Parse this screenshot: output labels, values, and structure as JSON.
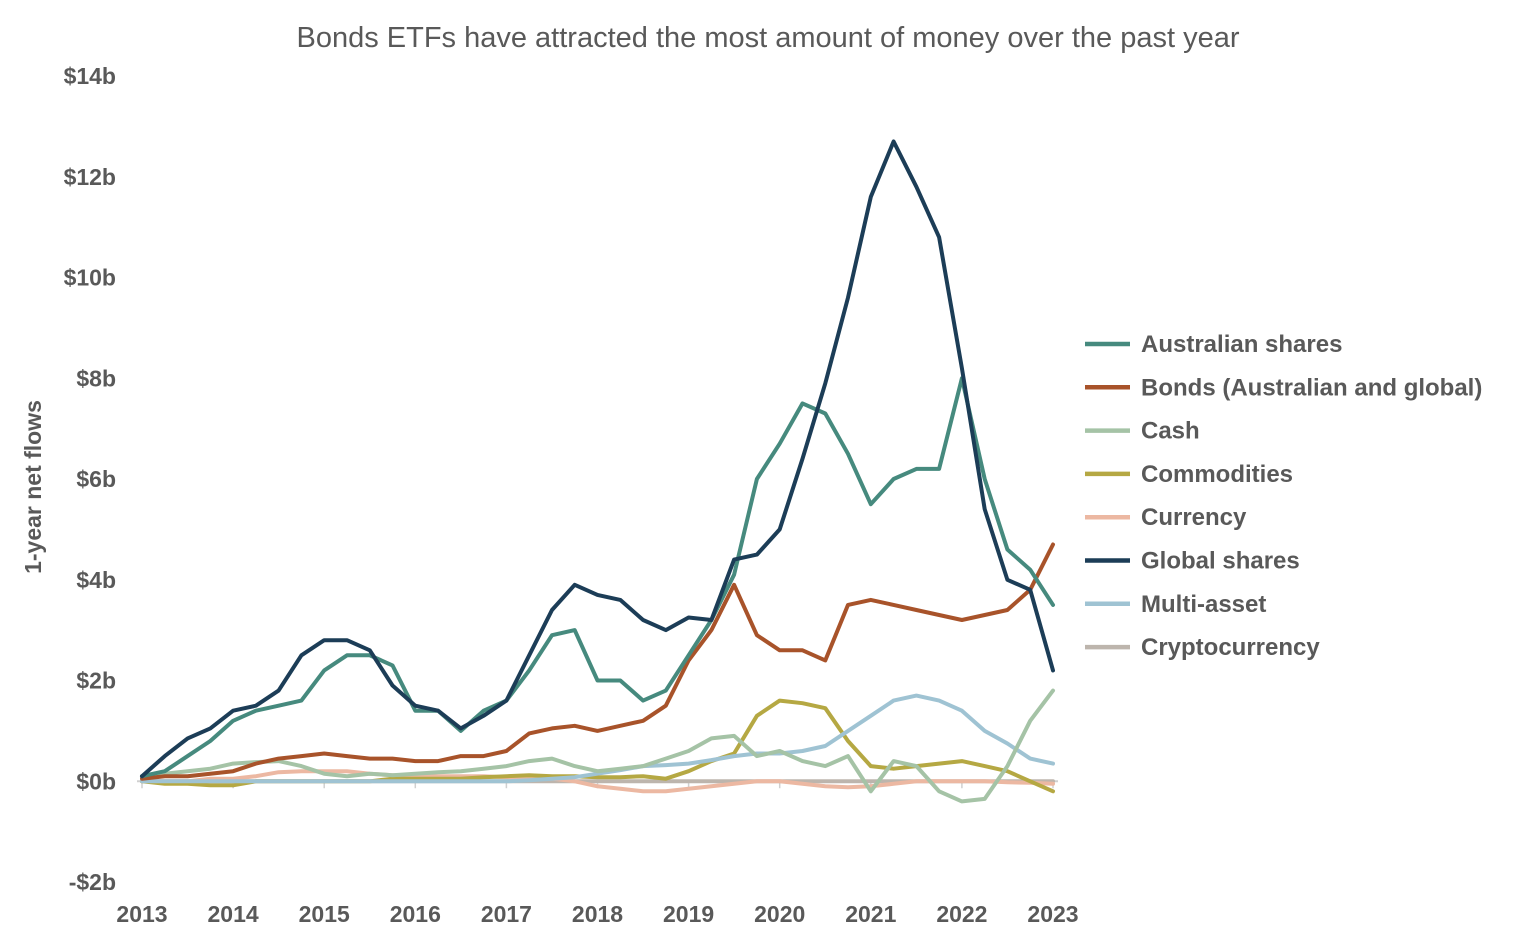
{
  "chart_data": {
    "type": "line",
    "title": "Bonds ETFs have attracted the most amount of money over the past year",
    "xlabel": "",
    "ylabel": "1-year net flows",
    "ylim": [
      -2,
      14
    ],
    "xlim": [
      2013,
      2023
    ],
    "yticks": [
      -2,
      0,
      2,
      4,
      6,
      8,
      10,
      12,
      14
    ],
    "ytick_labels": [
      "-$2b",
      "$0b",
      "$2b",
      "$4b",
      "$6b",
      "$8b",
      "$10b",
      "$12b",
      "$14b"
    ],
    "xticks": [
      2013,
      2014,
      2015,
      2016,
      2017,
      2018,
      2019,
      2020,
      2021,
      2022,
      2023
    ],
    "xtick_labels": [
      "2013",
      "2014",
      "2015",
      "2016",
      "2017",
      "2018",
      "2019",
      "2020",
      "2021",
      "2022",
      "2023"
    ],
    "grid": false,
    "legend_position": "right",
    "x_start": 2013,
    "x_step": 0.25,
    "series": [
      {
        "name": "Australian shares",
        "color": "#468a7e",
        "values": [
          0.1,
          0.2,
          0.5,
          0.8,
          1.2,
          1.4,
          1.5,
          1.6,
          2.2,
          2.5,
          2.5,
          2.3,
          1.4,
          1.4,
          1.0,
          1.4,
          1.6,
          2.2,
          2.9,
          3.0,
          2.0,
          2.0,
          1.6,
          1.8,
          2.5,
          3.2,
          4.1,
          6.0,
          6.7,
          7.5,
          7.3,
          6.5,
          5.5,
          6.0,
          6.2,
          6.2,
          8.0,
          6.0,
          4.6,
          4.2,
          3.5
        ]
      },
      {
        "name": "Bonds (Australian and global)",
        "color": "#a8532a",
        "values": [
          0.05,
          0.1,
          0.1,
          0.15,
          0.2,
          0.35,
          0.45,
          0.5,
          0.55,
          0.5,
          0.45,
          0.45,
          0.4,
          0.4,
          0.5,
          0.5,
          0.6,
          0.95,
          1.05,
          1.1,
          1.0,
          1.1,
          1.2,
          1.5,
          2.4,
          3.0,
          3.9,
          2.9,
          2.6,
          2.6,
          2.4,
          3.5,
          3.6,
          3.5,
          3.4,
          3.3,
          3.2,
          3.3,
          3.4,
          3.8,
          4.7
        ]
      },
      {
        "name": "Cash",
        "color": "#a5c3a6",
        "values": [
          0.1,
          0.15,
          0.2,
          0.25,
          0.35,
          0.38,
          0.4,
          0.3,
          0.15,
          0.1,
          0.15,
          0.12,
          0.15,
          0.18,
          0.2,
          0.25,
          0.3,
          0.4,
          0.45,
          0.3,
          0.2,
          0.25,
          0.3,
          0.45,
          0.6,
          0.85,
          0.9,
          0.5,
          0.6,
          0.4,
          0.3,
          0.5,
          -0.2,
          0.4,
          0.3,
          -0.2,
          -0.4,
          -0.35,
          0.3,
          1.2,
          1.8
        ]
      },
      {
        "name": "Commodities",
        "color": "#b5a843",
        "values": [
          0,
          -0.05,
          -0.05,
          -0.08,
          -0.08,
          0,
          0,
          0,
          0,
          0,
          0,
          0.05,
          0.05,
          0.05,
          0.05,
          0.08,
          0.1,
          0.12,
          0.1,
          0.1,
          0.08,
          0.08,
          0.1,
          0.05,
          0.2,
          0.4,
          0.55,
          1.3,
          1.6,
          1.55,
          1.45,
          0.8,
          0.3,
          0.25,
          0.3,
          0.35,
          0.4,
          0.3,
          0.2,
          0.0,
          -0.2
        ]
      },
      {
        "name": "Currency",
        "color": "#ecb8a2",
        "values": [
          0,
          0,
          0,
          0.05,
          0.05,
          0.1,
          0.18,
          0.2,
          0.2,
          0.2,
          0.15,
          0.12,
          0.12,
          0.1,
          0.1,
          0.1,
          0.08,
          0.05,
          0.05,
          0,
          -0.1,
          -0.15,
          -0.2,
          -0.2,
          -0.15,
          -0.1,
          -0.05,
          0,
          0,
          -0.05,
          -0.1,
          -0.12,
          -0.1,
          -0.05,
          0,
          0,
          0,
          0,
          -0.02,
          -0.03,
          -0.05
        ]
      },
      {
        "name": "Global shares",
        "color": "#1c3d57",
        "values": [
          0.1,
          0.5,
          0.85,
          1.05,
          1.4,
          1.5,
          1.8,
          2.5,
          2.8,
          2.8,
          2.6,
          1.9,
          1.5,
          1.4,
          1.05,
          1.3,
          1.6,
          2.5,
          3.4,
          3.9,
          3.7,
          3.6,
          3.2,
          3.0,
          3.25,
          3.2,
          4.4,
          4.5,
          5.0,
          6.4,
          7.9,
          9.6,
          11.6,
          12.7,
          11.8,
          10.8,
          8.2,
          5.4,
          4.0,
          3.8,
          2.2
        ]
      },
      {
        "name": "Multi-asset",
        "color": "#9fc3d3",
        "values": [
          0,
          0,
          0,
          0,
          0,
          0,
          0,
          0,
          0,
          0,
          0,
          0,
          0,
          0,
          0,
          0,
          0,
          0.02,
          0.05,
          0.08,
          0.15,
          0.22,
          0.3,
          0.32,
          0.35,
          0.42,
          0.5,
          0.55,
          0.55,
          0.6,
          0.7,
          1.0,
          1.3,
          1.6,
          1.7,
          1.6,
          1.4,
          1.0,
          0.75,
          0.45,
          0.35
        ]
      },
      {
        "name": "Cryptocurrency",
        "color": "#bdb5ad",
        "values": [
          0,
          0,
          0,
          0,
          0,
          0,
          0,
          0,
          0,
          0,
          0,
          0,
          0,
          0,
          0,
          0,
          0,
          0,
          0,
          0,
          0,
          0,
          0,
          0,
          0,
          0,
          0,
          0,
          0,
          0,
          0,
          0,
          0,
          0,
          0,
          0,
          0,
          0,
          0,
          0,
          0
        ]
      }
    ]
  }
}
